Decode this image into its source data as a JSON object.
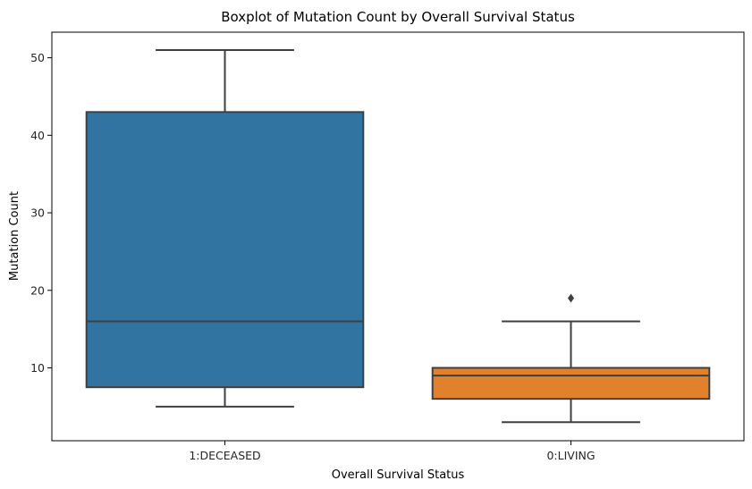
{
  "chart_data": {
    "type": "box",
    "title": "Boxplot of Mutation Count by Overall Survival Status",
    "xlabel": "Overall Survival Status",
    "ylabel": "Mutation Count",
    "ylim": [
      0.6,
      53.3
    ],
    "yticks": [
      10,
      20,
      30,
      40,
      50
    ],
    "ytick_labels": [
      "10",
      "20",
      "30",
      "40",
      "50"
    ],
    "grid": false,
    "categories": [
      "1:DECEASED",
      "0:LIVING"
    ],
    "boxes": [
      {
        "category": "1:DECEASED",
        "color": "#3274a1",
        "whisker_low": 5,
        "q1": 7.5,
        "median": 16,
        "q3": 43,
        "whisker_high": 51,
        "outliers": []
      },
      {
        "category": "0:LIVING",
        "color": "#e1812c",
        "whisker_low": 3,
        "q1": 6,
        "median": 9,
        "q3": 10,
        "whisker_high": 16,
        "outliers": [
          19
        ]
      }
    ],
    "line_color": "#3f3f3f"
  }
}
